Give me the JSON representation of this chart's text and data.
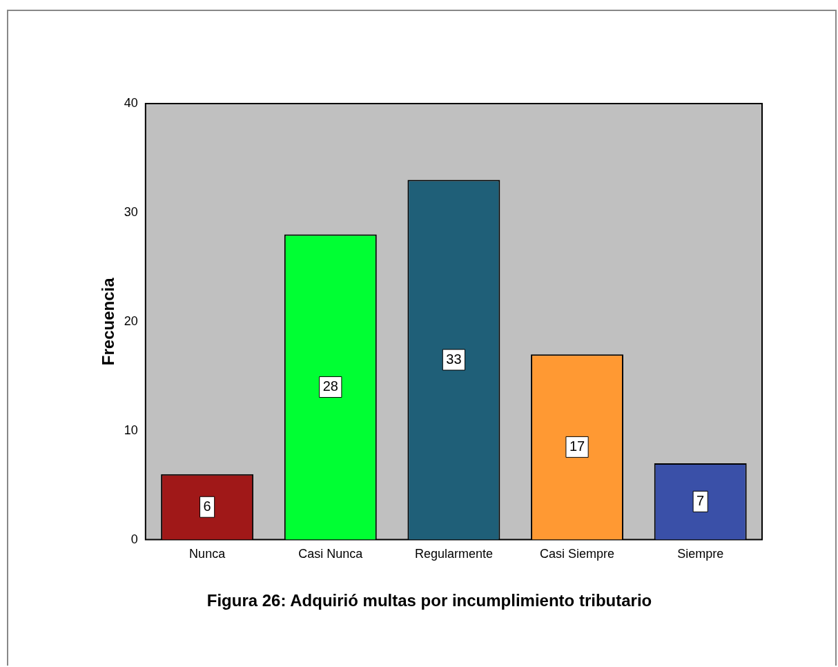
{
  "chart_data": {
    "type": "bar",
    "title": "Figura 26: Adquirió multas por incumplimiento tributario",
    "ylabel": "Frecuencia",
    "categories": [
      "Nunca",
      "Casi Nunca",
      "Regularmente",
      "Casi Siempre",
      "Siempre"
    ],
    "values": [
      6,
      28,
      33,
      17,
      7
    ],
    "colors": [
      "#a01818",
      "#00ff33",
      "#1f5f78",
      "#ff9933",
      "#3a50a8"
    ],
    "ylim": [
      0,
      40
    ],
    "yticks": [
      0,
      10,
      20,
      30,
      40
    ],
    "grid": false,
    "legend": false,
    "data_labels": true
  }
}
